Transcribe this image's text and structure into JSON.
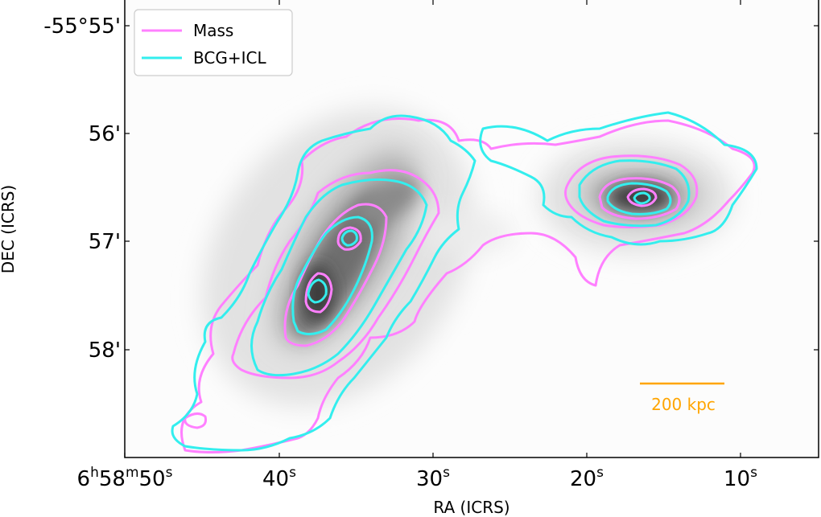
{
  "chart_data": {
    "type": "contour",
    "xlabel": "RA (ICRS)",
    "ylabel": "DEC (ICRS)",
    "x_ticks": [
      {
        "value": "6h58m50s",
        "pre": "6",
        "sup1": "h",
        "mid1": "58",
        "sup2": "m",
        "mid2": "50",
        "sup3": "s"
      },
      {
        "value": "40s",
        "pre": "40",
        "sup1": "s"
      },
      {
        "value": "30s",
        "pre": "30",
        "sup1": "s"
      },
      {
        "value": "20s",
        "pre": "20",
        "sup1": "s"
      },
      {
        "value": "10s",
        "pre": "10",
        "sup1": "s"
      }
    ],
    "y_ticks": [
      "-55°55'",
      "56'",
      "57'",
      "58'"
    ],
    "legend": {
      "placement": "top-left",
      "entries": [
        {
          "label": "Mass",
          "color": "#ff80ff"
        },
        {
          "label": "BCG+ICL",
          "color": "#33eeee"
        }
      ]
    },
    "scale_bar": {
      "label": "200 kpc",
      "color": "#ffa500"
    },
    "background": "grayscale mass density map",
    "series": [
      {
        "name": "Mass",
        "color": "#ff80ff"
      },
      {
        "name": "BCG+ICL",
        "color": "#33eeee"
      }
    ],
    "peaks": [
      {
        "ra": "6h58m37.9s",
        "dec": "-55°57'25\""
      },
      {
        "ra": "6h58m35.3s",
        "dec": "-55°56'58\""
      },
      {
        "ra": "6h58m16.0s",
        "dec": "-55°56'35\""
      }
    ]
  }
}
